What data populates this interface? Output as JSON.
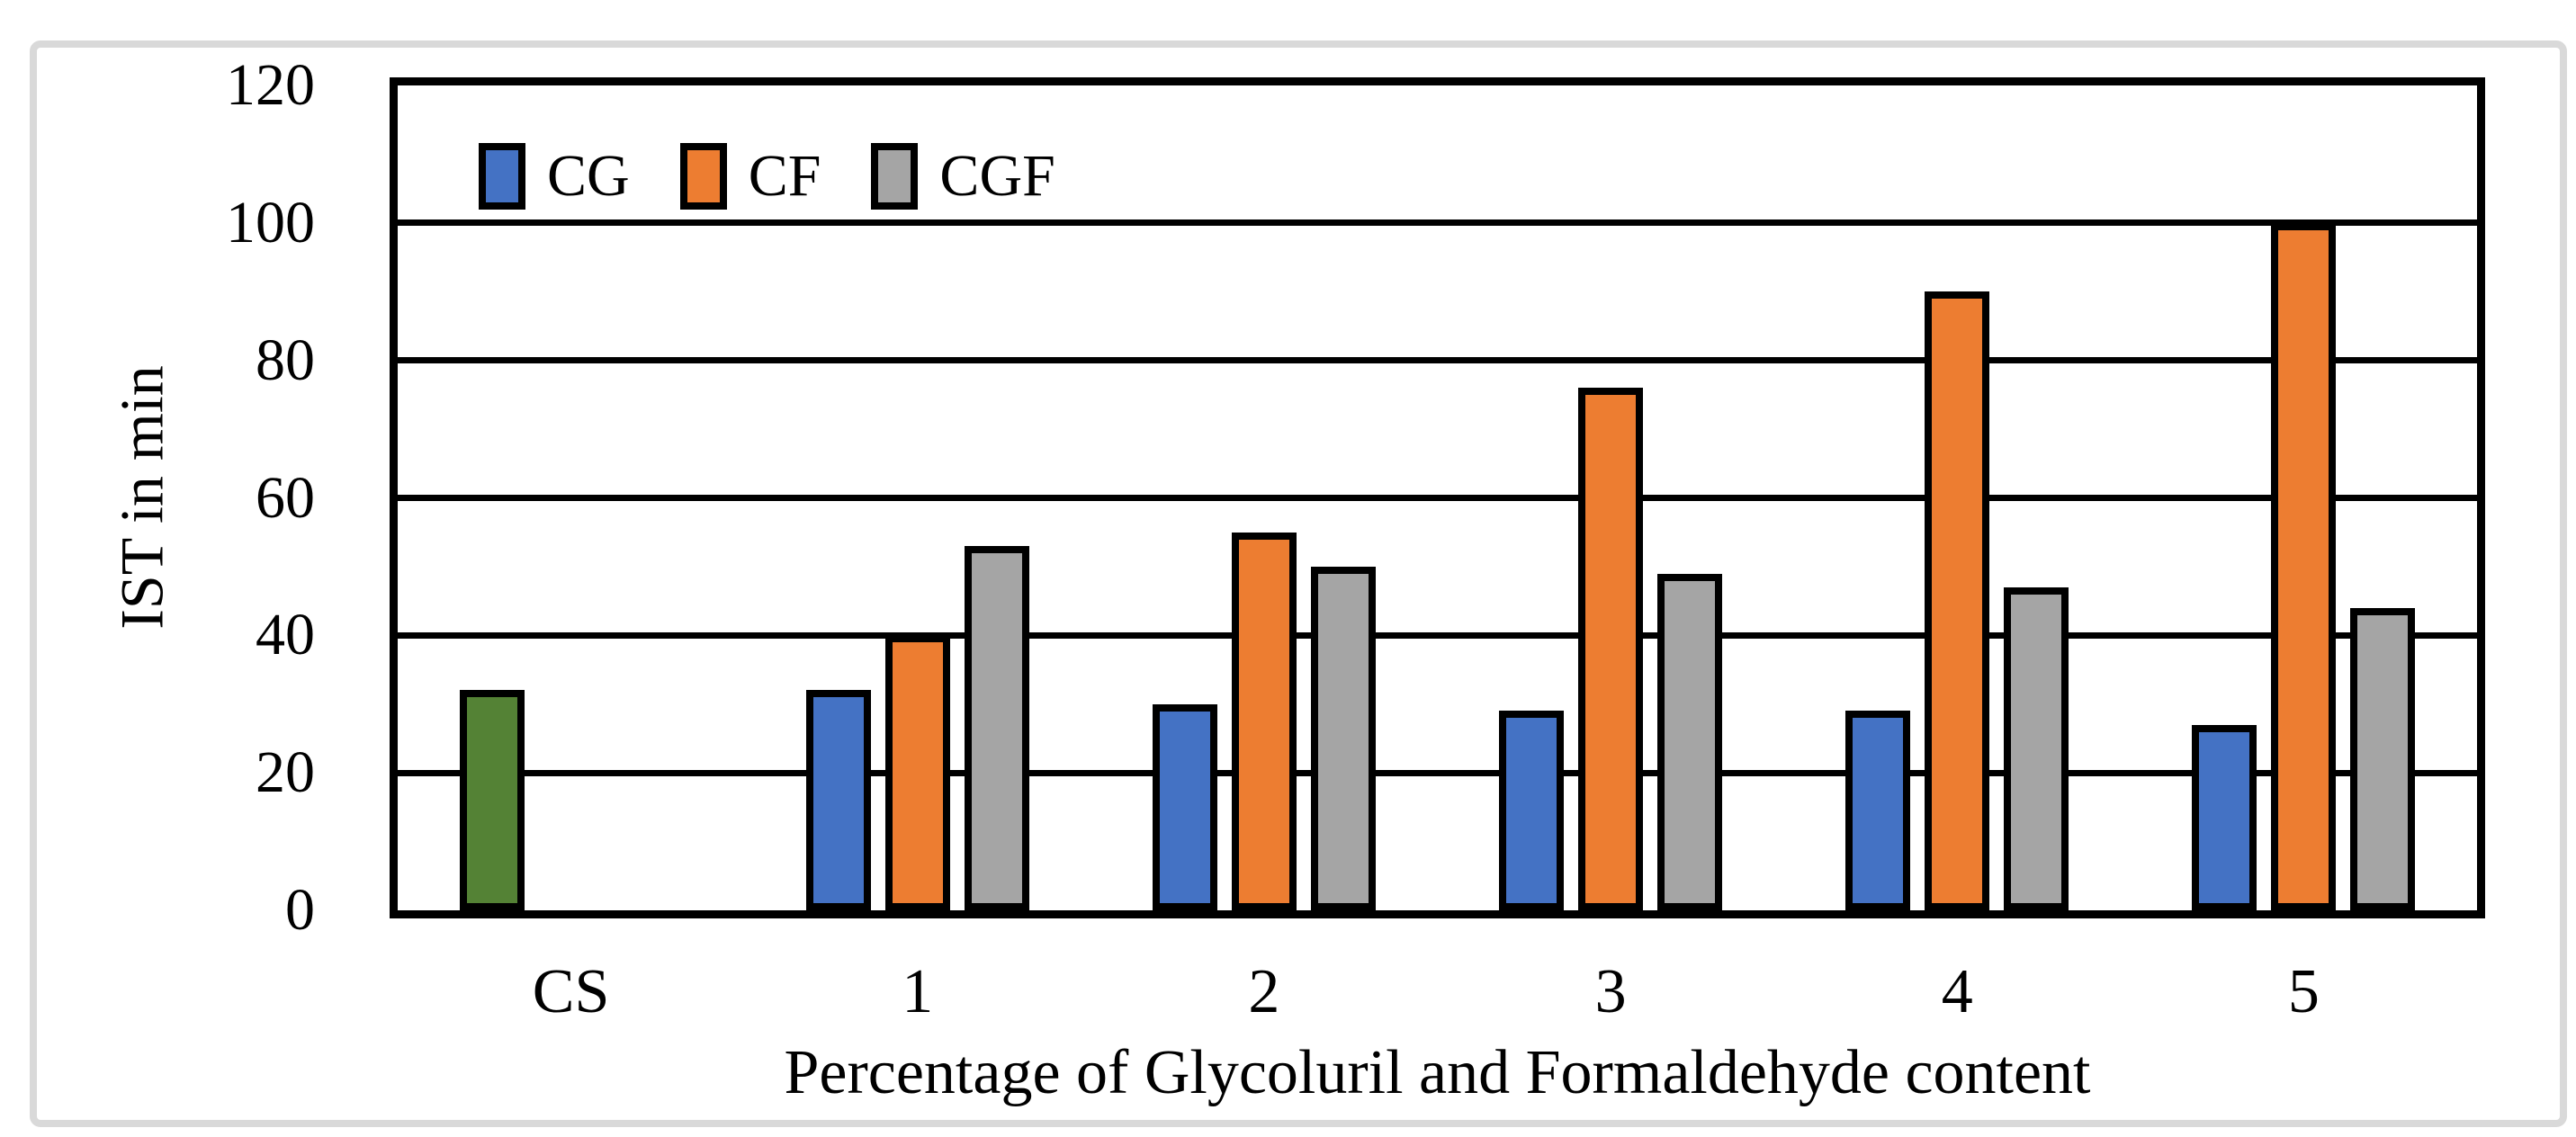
{
  "chart_data": {
    "type": "bar",
    "title": "",
    "xlabel": "Percentage of Glycoluril and Formaldehyde content",
    "ylabel": "IST in min",
    "categories": [
      "CS",
      "1",
      "2",
      "3",
      "4",
      "5"
    ],
    "series": [
      {
        "name": "CG",
        "color": "#4472C4",
        "values": [
          32,
          32,
          30,
          29,
          29,
          27
        ],
        "point_colors": {
          "0": "#548235"
        }
      },
      {
        "name": "CF",
        "color": "#ED7D31",
        "values": [
          null,
          40,
          55,
          76,
          90,
          100
        ]
      },
      {
        "name": "CGF",
        "color": "#A5A5A5",
        "values": [
          null,
          53,
          50,
          49,
          47,
          44
        ]
      }
    ],
    "ylim": [
      0,
      120
    ],
    "ytick_step": 20,
    "grid": true,
    "legend_position": "top-left inside plot",
    "bar_outline_color": "#000000",
    "frame_color": "#d9d9d9"
  }
}
